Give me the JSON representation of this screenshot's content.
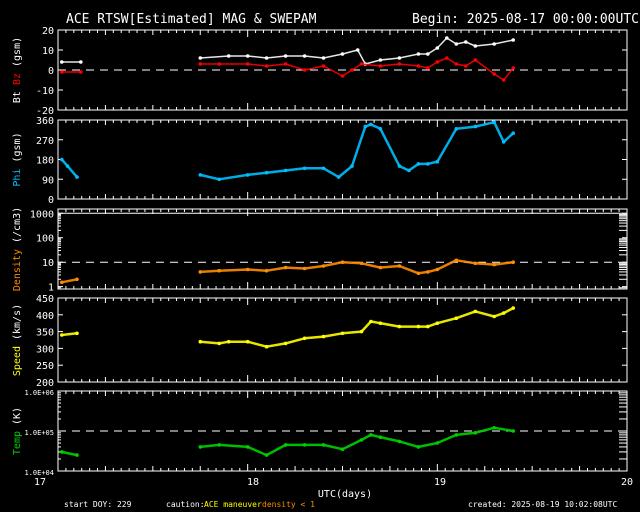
{
  "header": {
    "title": "ACE RTSW[Estimated] MAG & SWEPAM",
    "begin": "Begin: 2025-08-17 00:00:00UTC"
  },
  "footer": {
    "start_doy": "start DOY: 229",
    "caution_label": "caution:",
    "caution_maneuver": "ACE maneuver",
    "caution_density": "density < 1",
    "created": "created: 2025-08-19 10:02:08UTC"
  },
  "colors": {
    "background": "#000000",
    "axes": "#ffffff",
    "bt": "#ffffff",
    "bz": "#ff0000",
    "phi": "#00bfff",
    "density": "#ff8c00",
    "speed": "#ffff00",
    "temp": "#00d000",
    "maneuver": "#ffff00",
    "density_low": "#ff8c00"
  },
  "chart_data": [
    {
      "type": "line",
      "panel": "mag",
      "xlabel": "UTC(days)",
      "xlim": [
        17,
        20
      ],
      "x_ticks": [
        "17",
        "18",
        "19",
        "20"
      ],
      "ylabel_parts": [
        "Bt",
        "Bz",
        "(gsm)"
      ],
      "ylim": [
        -20,
        20
      ],
      "y_ticks": [
        "20",
        "10",
        "0",
        "-10",
        "-20"
      ],
      "reference_line": 0,
      "series": [
        {
          "name": "Bt",
          "color": "#ffffff",
          "x": [
            17.02,
            17.12,
            17.75,
            17.9,
            18.0,
            18.1,
            18.2,
            18.3,
            18.4,
            18.5,
            18.58,
            18.62,
            18.7,
            18.8,
            18.9,
            18.95,
            19.0,
            19.05,
            19.1,
            19.15,
            19.2,
            19.3,
            19.4
          ],
          "y": [
            4,
            4,
            6,
            7,
            7,
            6,
            7,
            7,
            6,
            8,
            10,
            3,
            5,
            6,
            8,
            8,
            11,
            16,
            13,
            14,
            12,
            13,
            15
          ]
        },
        {
          "name": "Bz",
          "color": "#ff0000",
          "x": [
            17.02,
            17.12,
            17.75,
            17.85,
            18.0,
            18.1,
            18.2,
            18.3,
            18.4,
            18.5,
            18.55,
            18.6,
            18.7,
            18.8,
            18.9,
            18.95,
            19.0,
            19.05,
            19.1,
            19.15,
            19.2,
            19.3,
            19.35,
            19.4
          ],
          "y": [
            -1,
            -1,
            3,
            3,
            3,
            2,
            3,
            0,
            2,
            -3,
            0,
            3,
            2,
            3,
            2,
            1,
            4,
            6,
            3,
            2,
            5,
            -2,
            -5,
            1
          ]
        }
      ]
    },
    {
      "type": "scatter",
      "panel": "phi",
      "ylabel_parts": [
        "Phi",
        "(gsm)"
      ],
      "ylim": [
        0,
        360
      ],
      "y_ticks": [
        "360",
        "270",
        "180",
        "90",
        "0"
      ],
      "series": [
        {
          "name": "Phi",
          "color": "#00bfff",
          "x": [
            17.02,
            17.05,
            17.1,
            17.75,
            17.85,
            18.0,
            18.1,
            18.2,
            18.3,
            18.4,
            18.48,
            18.55,
            18.62,
            18.65,
            18.7,
            18.8,
            18.85,
            18.9,
            18.95,
            19.0,
            19.1,
            19.2,
            19.3,
            19.35,
            19.4
          ],
          "y": [
            180,
            150,
            100,
            110,
            90,
            110,
            120,
            130,
            140,
            140,
            100,
            150,
            330,
            340,
            320,
            150,
            130,
            160,
            160,
            170,
            320,
            330,
            350,
            260,
            300
          ]
        }
      ]
    },
    {
      "type": "scatter",
      "panel": "density",
      "ylabel_parts": [
        "Density",
        "(/cm3)"
      ],
      "yscale": "log",
      "ylim": [
        0.8,
        1500
      ],
      "y_ticks": [
        "1000",
        "100",
        "10",
        "1"
      ],
      "reference_lines": [
        10,
        1000
      ],
      "series": [
        {
          "name": "Density",
          "color": "#ff8c00",
          "x": [
            17.02,
            17.1,
            17.75,
            17.85,
            18.0,
            18.1,
            18.2,
            18.3,
            18.4,
            18.5,
            18.6,
            18.7,
            18.8,
            18.9,
            18.95,
            19.0,
            19.1,
            19.2,
            19.3,
            19.4
          ],
          "y": [
            1.5,
            2,
            4,
            4.5,
            5,
            4.5,
            6,
            5.5,
            7,
            10,
            9,
            6,
            7,
            3.5,
            4,
            5,
            12,
            9,
            8,
            10
          ]
        }
      ]
    },
    {
      "type": "scatter",
      "panel": "speed",
      "ylabel_parts": [
        "Speed",
        "(km/s)"
      ],
      "ylim": [
        200,
        450
      ],
      "y_ticks": [
        "450",
        "400",
        "350",
        "300",
        "250",
        "200"
      ],
      "series": [
        {
          "name": "Speed",
          "color": "#ffff00",
          "x": [
            17.02,
            17.1,
            17.75,
            17.85,
            17.9,
            18.0,
            18.1,
            18.2,
            18.3,
            18.4,
            18.5,
            18.6,
            18.65,
            18.7,
            18.8,
            18.9,
            18.95,
            19.0,
            19.1,
            19.2,
            19.3,
            19.35,
            19.4
          ],
          "y": [
            340,
            345,
            320,
            315,
            320,
            320,
            305,
            315,
            330,
            335,
            345,
            350,
            380,
            375,
            365,
            365,
            365,
            375,
            390,
            410,
            395,
            405,
            420
          ]
        }
      ]
    },
    {
      "type": "scatter",
      "panel": "temp",
      "ylabel_parts": [
        "Temp",
        "(K)"
      ],
      "yscale": "log",
      "ylim": [
        10000,
        1000000
      ],
      "y_ticks": [
        "1.0E+06",
        "1.0E+05",
        "1.0E+04"
      ],
      "reference_line": 100000,
      "series": [
        {
          "name": "Temp",
          "color": "#00d000",
          "x": [
            17.02,
            17.1,
            17.75,
            17.85,
            18.0,
            18.1,
            18.2,
            18.3,
            18.4,
            18.5,
            18.6,
            18.65,
            18.7,
            18.8,
            18.9,
            19.0,
            19.1,
            19.2,
            19.3,
            19.4
          ],
          "y": [
            30000,
            25000,
            40000,
            45000,
            40000,
            25000,
            45000,
            45000,
            45000,
            35000,
            60000,
            80000,
            70000,
            55000,
            40000,
            50000,
            80000,
            90000,
            120000,
            100000
          ]
        }
      ]
    }
  ]
}
